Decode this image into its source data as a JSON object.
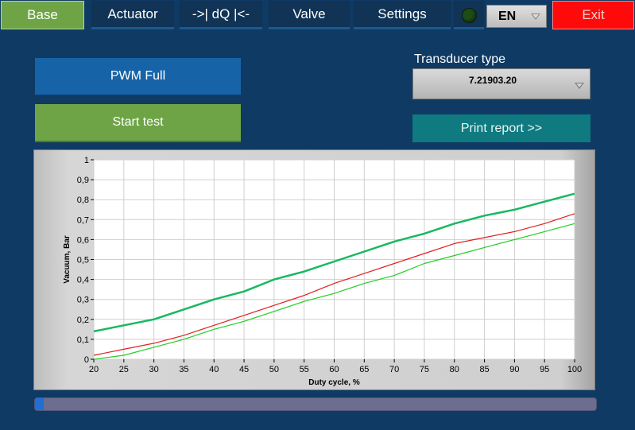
{
  "tabs": [
    {
      "label": "Base",
      "active": true
    },
    {
      "label": "Actuator",
      "active": false
    },
    {
      "label": "->| dQ |<-",
      "active": false
    },
    {
      "label": "Valve",
      "active": false
    },
    {
      "label": "Settings",
      "active": false
    }
  ],
  "status_led": {
    "color": "#1f4d17",
    "state": "off"
  },
  "language": {
    "value": "EN"
  },
  "exit_label": "Exit",
  "buttons": {
    "pwm_full": "PWM Full",
    "start_test": "Start test",
    "print_report": "Print report >>"
  },
  "transducer": {
    "label": "Transducer type",
    "value": "7.21903.20"
  },
  "progress": {
    "value": 0.015
  },
  "colors": {
    "background": "#0f3a63",
    "base_tab": "#6ea446",
    "exit": "#ff0a0a",
    "series_upper": "#18b860",
    "series_mid": "#e02020",
    "series_lower": "#22cc22"
  },
  "chart_data": {
    "type": "line",
    "xlabel": "Duty cycle, %",
    "ylabel": "Vacuum, Bar",
    "xlim": [
      20,
      100
    ],
    "ylim": [
      0,
      1
    ],
    "xticks": [
      20,
      25,
      30,
      35,
      40,
      45,
      50,
      55,
      60,
      65,
      70,
      75,
      80,
      85,
      90,
      95,
      100
    ],
    "xtick_labels": [
      "20",
      "25",
      "30",
      "35",
      "40",
      "45",
      "50",
      "55",
      "60",
      "65",
      "70",
      "75",
      "80",
      "85",
      "90",
      "95",
      "100"
    ],
    "yticks": [
      0,
      0.1,
      0.2,
      0.3,
      0.4,
      0.5,
      0.6,
      0.7,
      0.8,
      0.9,
      1
    ],
    "ytick_labels": [
      "0",
      "0,1",
      "0,2",
      "0,3",
      "0,4",
      "0,5",
      "0,6",
      "0,7",
      "0,8",
      "0,9",
      "1"
    ],
    "grid": true,
    "series": [
      {
        "color": "#18b860",
        "width": 2.5,
        "x": [
          20,
          25,
          30,
          35,
          40,
          45,
          50,
          55,
          60,
          65,
          70,
          75,
          80,
          85,
          90,
          95,
          100
        ],
        "y": [
          0.14,
          0.17,
          0.2,
          0.25,
          0.3,
          0.34,
          0.4,
          0.44,
          0.49,
          0.54,
          0.59,
          0.63,
          0.68,
          0.72,
          0.75,
          0.79,
          0.83
        ]
      },
      {
        "color": "#e02020",
        "width": 1.2,
        "x": [
          20,
          25,
          30,
          35,
          40,
          45,
          50,
          55,
          60,
          65,
          70,
          75,
          80,
          85,
          90,
          95,
          100
        ],
        "y": [
          0.02,
          0.05,
          0.08,
          0.12,
          0.17,
          0.22,
          0.27,
          0.32,
          0.38,
          0.43,
          0.48,
          0.53,
          0.58,
          0.61,
          0.64,
          0.68,
          0.73
        ]
      },
      {
        "color": "#22cc22",
        "width": 1.2,
        "x": [
          20,
          25,
          30,
          35,
          40,
          45,
          50,
          55,
          60,
          65,
          70,
          75,
          80,
          85,
          90,
          95,
          100
        ],
        "y": [
          0.0,
          0.02,
          0.06,
          0.1,
          0.15,
          0.19,
          0.24,
          0.29,
          0.33,
          0.38,
          0.42,
          0.48,
          0.52,
          0.56,
          0.6,
          0.64,
          0.68
        ]
      }
    ]
  }
}
